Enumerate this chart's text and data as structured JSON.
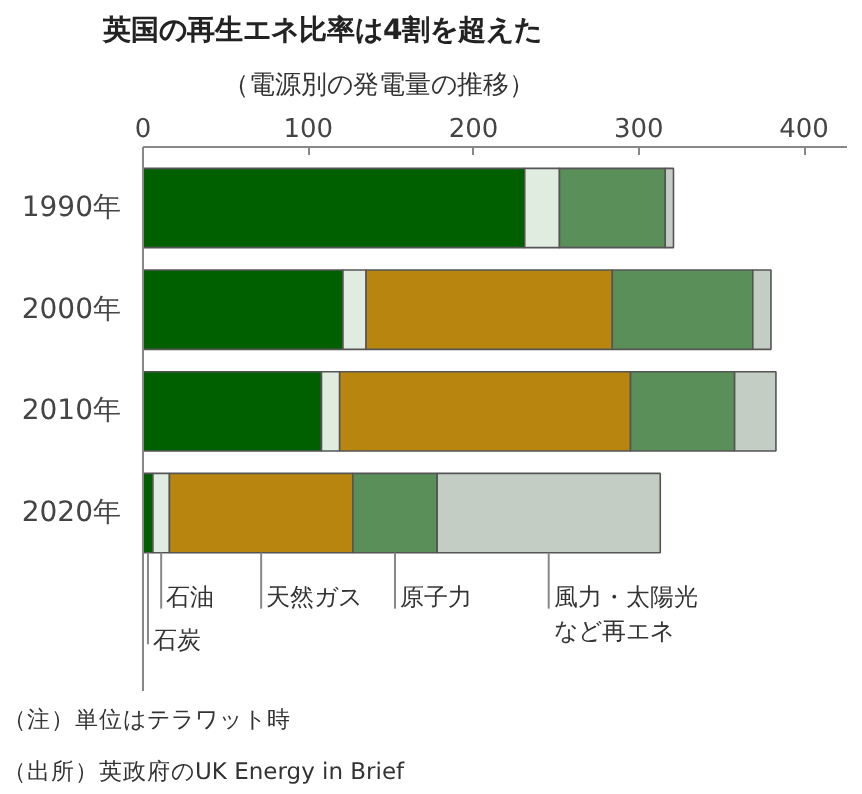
{
  "chart_data": {
    "type": "bar",
    "title": "英国の再生エネ比率は4割を超えた",
    "subtitle": "（電源別の発電量の推移）",
    "orientation": "horizontal",
    "stacked": true,
    "categories": [
      "1990年",
      "2000年",
      "2010年",
      "2020年"
    ],
    "series": [
      {
        "name": "石炭",
        "color": "#006000",
        "values": [
          231,
          121,
          108,
          6
        ]
      },
      {
        "name": "石油",
        "color": "#e0ece0",
        "values": [
          21,
          14,
          11,
          10
        ]
      },
      {
        "name": "天然ガス",
        "color": "#b8860f",
        "values": [
          0,
          149,
          176,
          111
        ]
      },
      {
        "name": "原子力",
        "color": "#5a8f5a",
        "values": [
          64,
          85,
          63,
          51
        ]
      },
      {
        "name": "風力・太陽光など再エネ",
        "color": "#c3cdc3",
        "values": [
          5,
          11,
          25,
          135
        ]
      }
    ],
    "xlim": [
      0,
      426
    ],
    "xticks": [
      0,
      100,
      200,
      300,
      400
    ],
    "grid": false,
    "annotations": [
      "（注）単位はテラワット時",
      "（出所）英政府のUK Energy in Brief"
    ]
  }
}
